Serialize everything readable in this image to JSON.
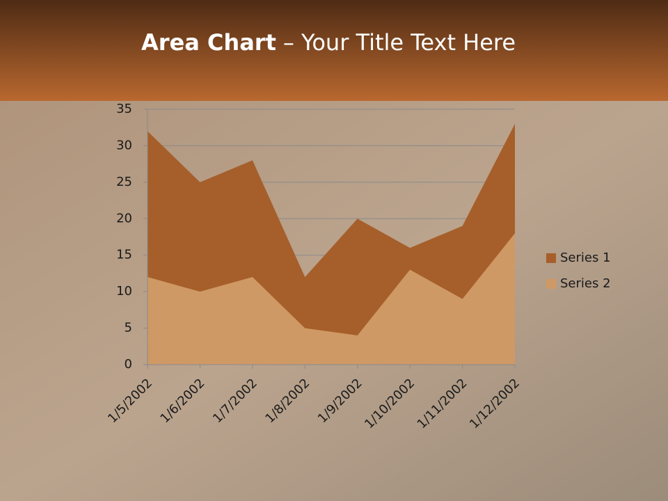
{
  "chart_data": {
    "type": "area",
    "title": {
      "bold": "Area Chart",
      "rest": "– Your Title Text Here"
    },
    "categories": [
      "1/5/2002",
      "1/6/2002",
      "1/7/2002",
      "1/8/2002",
      "1/9/2002",
      "1/10/2002",
      "1/11/2002",
      "1/12/2002"
    ],
    "series": [
      {
        "name": "Series 1",
        "color": "#a65f2a",
        "values": [
          32,
          25,
          28,
          12,
          20,
          16,
          19,
          33
        ]
      },
      {
        "name": "Series 2",
        "color": "#cf9965",
        "values": [
          12,
          10,
          12,
          5,
          4,
          13,
          9,
          18
        ]
      }
    ],
    "ylim": [
      0,
      35
    ],
    "yticks": [
      0,
      5,
      10,
      15,
      20,
      25,
      30,
      35
    ],
    "grid": true,
    "legend": "right"
  }
}
